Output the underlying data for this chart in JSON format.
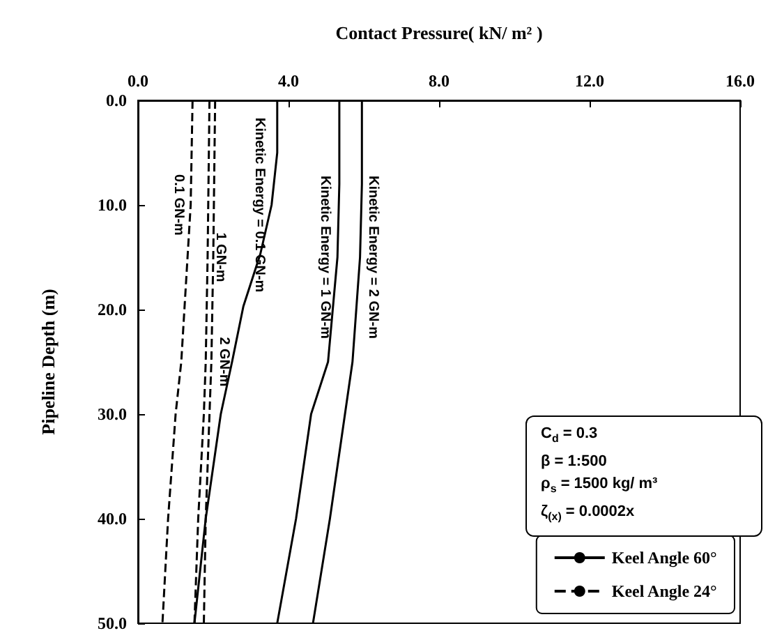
{
  "chart_data": {
    "type": "line",
    "xlabel": "Contact Pressure( kN/ m² )",
    "ylabel": "Pipeline Depth (m)",
    "xlim": [
      0,
      16
    ],
    "xticks": [
      {
        "value": 0,
        "label": "0.0"
      },
      {
        "value": 4,
        "label": "4.0"
      },
      {
        "value": 8,
        "label": "8.0"
      },
      {
        "value": 12,
        "label": "12.0"
      },
      {
        "value": 16,
        "label": "16.0"
      }
    ],
    "ylim": [
      50,
      0
    ],
    "yticks": [
      {
        "value": 0,
        "label": "0.0"
      },
      {
        "value": 10,
        "label": "10.0"
      },
      {
        "value": 20,
        "label": "20.0"
      },
      {
        "value": 30,
        "label": "30.0"
      },
      {
        "value": 40,
        "label": "40.0"
      },
      {
        "value": 50,
        "label": "50.0"
      }
    ],
    "grid": false,
    "legend": "bottom right",
    "marker": "none",
    "series": [
      {
        "name": "Keel Angle 60°",
        "color": "#000000",
        "line_style": "solid",
        "x": [
          3.7,
          3.7,
          3.55,
          3.25,
          2.8,
          2.5,
          2.2,
          1.8,
          1.5
        ],
        "values": [
          0,
          5,
          10,
          14.7,
          19.7,
          25,
          30,
          40,
          50
        ]
      },
      {
        "color": "#000000",
        "line_style": "solid",
        "x": [
          5.35,
          5.35,
          5.3,
          5.05,
          4.6,
          4.2,
          3.7
        ],
        "values": [
          0,
          8,
          15,
          25,
          30,
          40,
          50
        ]
      },
      {
        "color": "#000000",
        "line_style": "solid",
        "x": [
          5.95,
          5.95,
          5.9,
          5.7,
          5.5,
          5.1,
          4.65
        ],
        "values": [
          0,
          8,
          15,
          25,
          30,
          40,
          50
        ]
      },
      {
        "name": "Keel Angle 24°",
        "color": "#000000",
        "line_style": "dashed",
        "x": [
          1.45,
          1.4,
          1.15,
          1.0,
          0.8,
          0.65
        ],
        "values": [
          0,
          10,
          25,
          30,
          40,
          50
        ]
      },
      {
        "color": "#000000",
        "line_style": "dashed",
        "x": [
          1.9,
          1.85,
          1.8,
          1.75,
          1.6,
          1.5
        ],
        "values": [
          0,
          15,
          25,
          30,
          40,
          50
        ]
      },
      {
        "color": "#000000",
        "line_style": "dashed",
        "x": [
          2.05,
          2.0,
          1.95,
          1.9,
          1.8,
          1.75
        ],
        "values": [
          0,
          15,
          25,
          30,
          40,
          50
        ]
      }
    ],
    "annotations": [
      {
        "text": "Kinetic Energy = 0.1 GN-m",
        "x": 3.55,
        "y": 10
      },
      {
        "text": "Kinetic Energy = 1 GN-m",
        "x": 5.3,
        "y": 15
      },
      {
        "text": "Kinetic Energy = 2 GN-m",
        "x": 5.9,
        "y": 15
      },
      {
        "text": "0.1 GN-m",
        "x": 1.4,
        "y": 10
      },
      {
        "text": "1 GN-m",
        "x": 1.85,
        "y": 15
      },
      {
        "text": "2 GN-m",
        "x": 1.95,
        "y": 25
      },
      "C$_{d}$ = 0.3",
      "β = 1:500",
      "ρ$_{s}$ = 1500 kg/ m³",
      "ζ$_{(x)}$ = 0.0002x"
    ]
  }
}
